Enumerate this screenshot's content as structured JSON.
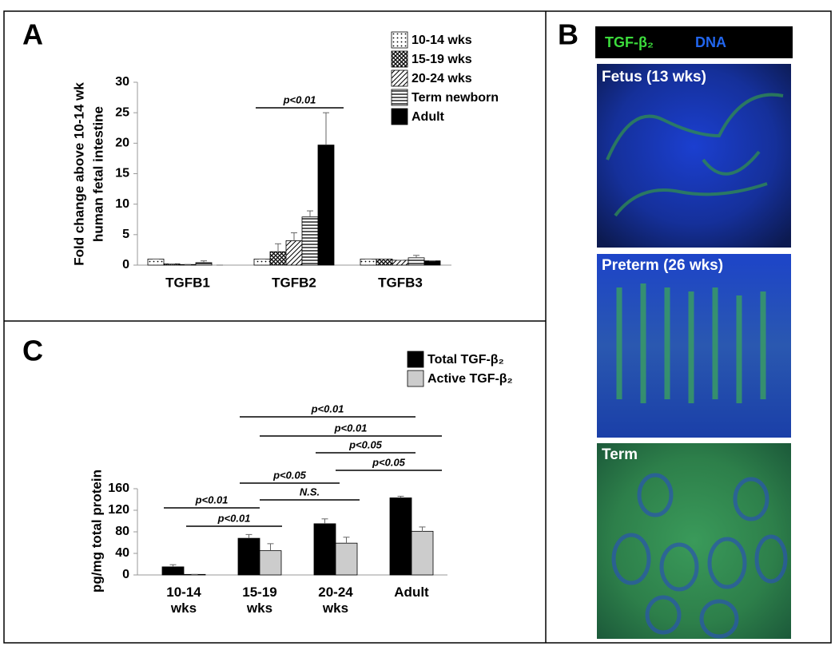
{
  "panel_labels": [
    "A",
    "B",
    "C"
  ],
  "images": {
    "header": [
      "TGF-β₂",
      "DNA"
    ],
    "labels": [
      "Fetus (13 wks)",
      "Preterm (26 wks)",
      "Term"
    ]
  },
  "chart_data": [
    {
      "type": "bar",
      "ylabel": [
        "Fold change above 10-14 wk",
        "human fetal intestine"
      ],
      "categories": [
        "TGFB1",
        "TGFB2",
        "TGFB3"
      ],
      "series": [
        {
          "name": "10-14 wks",
          "color": "#000000",
          "pattern": "dots",
          "values": [
            1,
            1,
            1
          ],
          "errors": [
            0,
            0,
            0
          ]
        },
        {
          "name": "15-19 wks",
          "color": "#000000",
          "pattern": "crosshatch",
          "values": [
            0.2,
            2.2,
            1
          ],
          "errors": [
            0,
            1.3,
            0
          ]
        },
        {
          "name": "20-24 wks",
          "color": "#000000",
          "pattern": "diagonal",
          "values": [
            0.1,
            4,
            0.8
          ],
          "errors": [
            0,
            1.3,
            0
          ]
        },
        {
          "name": "Term newborn",
          "color": "#000000",
          "pattern": "horizontal",
          "values": [
            0.4,
            7.9,
            1.2
          ],
          "errors": [
            0.3,
            1,
            0.4
          ]
        },
        {
          "name": "Adult",
          "color": "#000000",
          "pattern": "solid",
          "values": [
            0,
            19.7,
            0.7
          ],
          "errors": [
            0,
            5.3,
            0
          ]
        }
      ],
      "ylim": [
        0,
        30
      ],
      "yticks": [
        0,
        5,
        10,
        15,
        20,
        25,
        30
      ],
      "annotations": [
        "p<0.01"
      ]
    },
    {
      "type": "bar",
      "ylabel": [
        "pg/mg total protein"
      ],
      "categories": [
        "10-14 wks",
        "15-19 wks",
        "20-24 wks",
        "Adult"
      ],
      "series": [
        {
          "name": "Total TGF-β₂",
          "color": "#000000",
          "pattern": "solid",
          "values": [
            15,
            68,
            95,
            143
          ],
          "errors": [
            4,
            7,
            9,
            3
          ]
        },
        {
          "name": "Active TGF-β₂",
          "color": "#cccccc",
          "pattern": "solid",
          "values": [
            1,
            45,
            59,
            81
          ],
          "errors": [
            0,
            13,
            11,
            8
          ]
        }
      ],
      "ylim": [
        0,
        160
      ],
      "yticks": [
        0,
        40,
        80,
        120,
        160
      ],
      "annotations": [
        "p<0.01",
        "p<0.01",
        "p<0.05",
        "p<0.05",
        "p<0.05",
        "N.S.",
        "p<0.01",
        "p<0.01"
      ]
    }
  ]
}
